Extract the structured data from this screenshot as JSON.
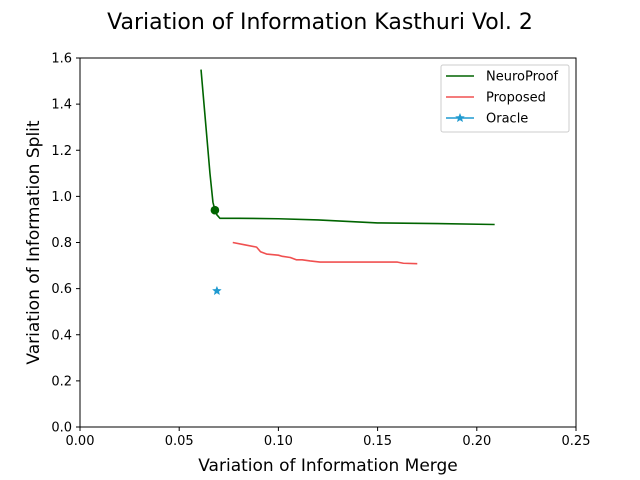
{
  "chart_data": {
    "type": "line",
    "title": "Variation of Information Kasthuri Vol. 2",
    "xlabel": "Variation of Information Merge",
    "ylabel": "Variation of Information Split",
    "xlim": [
      0.0,
      0.25
    ],
    "ylim": [
      0.0,
      1.6
    ],
    "xticks": [
      "0.00",
      "0.05",
      "0.10",
      "0.15",
      "0.20",
      "0.25"
    ],
    "yticks": [
      "0.0",
      "0.2",
      "0.4",
      "0.6",
      "0.8",
      "1.0",
      "1.2",
      "1.4",
      "1.6"
    ],
    "grid": false,
    "legend_position": "top-right",
    "series": [
      {
        "name": "NeuroProof",
        "color": "#006400",
        "marker": "none",
        "x": [
          0.061,
          0.0625,
          0.064,
          0.0655,
          0.067,
          0.068,
          0.069,
          0.0705,
          0.072,
          0.08,
          0.1,
          0.12,
          0.15,
          0.18,
          0.209
        ],
        "y": [
          1.55,
          1.4,
          1.25,
          1.1,
          0.975,
          0.94,
          0.92,
          0.905,
          0.905,
          0.905,
          0.903,
          0.898,
          0.885,
          0.882,
          0.878
        ]
      },
      {
        "name": "Proposed",
        "color": "#f05050",
        "marker": "none",
        "x": [
          0.077,
          0.083,
          0.089,
          0.091,
          0.094,
          0.1,
          0.102,
          0.106,
          0.109,
          0.112,
          0.116,
          0.121,
          0.13,
          0.16,
          0.163,
          0.17
        ],
        "y": [
          0.8,
          0.79,
          0.78,
          0.76,
          0.75,
          0.745,
          0.74,
          0.735,
          0.725,
          0.725,
          0.72,
          0.715,
          0.715,
          0.715,
          0.71,
          0.708
        ]
      },
      {
        "name": "Oracle",
        "color": "#1f9ad0",
        "marker": "star",
        "x": [
          0.069
        ],
        "y": [
          0.59
        ]
      }
    ],
    "annotations": [
      {
        "type": "point",
        "x": 0.068,
        "y": 0.94,
        "color": "#006400"
      }
    ]
  }
}
